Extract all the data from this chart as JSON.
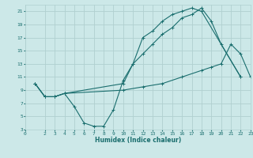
{
  "xlabel": "Humidex (Indice chaleur)",
  "background_color": "#cce8e8",
  "grid_color": "#b0d0d0",
  "line_color": "#1a6e6e",
  "xlim": [
    0,
    23
  ],
  "ylim": [
    3,
    22
  ],
  "xticks": [
    0,
    2,
    3,
    4,
    5,
    6,
    7,
    8,
    9,
    10,
    11,
    12,
    13,
    14,
    15,
    16,
    17,
    18,
    19,
    20,
    21,
    22,
    23
  ],
  "yticks": [
    3,
    5,
    7,
    9,
    11,
    13,
    15,
    17,
    19,
    21
  ],
  "line1_x": [
    1,
    2,
    3,
    4,
    5,
    6,
    7,
    8,
    9,
    10,
    11,
    12,
    13,
    14,
    15,
    16,
    17,
    18,
    22
  ],
  "line1_y": [
    10,
    8,
    8,
    8.5,
    6.5,
    4,
    3.5,
    3.5,
    6,
    10.5,
    13,
    17,
    18,
    19.5,
    20.5,
    21,
    21.5,
    21,
    11
  ],
  "line2_x": [
    1,
    2,
    3,
    4,
    10,
    11,
    12,
    13,
    14,
    15,
    16,
    17,
    18,
    19,
    20,
    22
  ],
  "line2_y": [
    10,
    8,
    8,
    8.5,
    10,
    13,
    14.5,
    16,
    17.5,
    18.5,
    20,
    20.5,
    21.5,
    19.5,
    16,
    11
  ],
  "line3_x": [
    1,
    2,
    3,
    4,
    10,
    12,
    14,
    16,
    18,
    19,
    20,
    21,
    22,
    23
  ],
  "line3_y": [
    10,
    8,
    8,
    8.5,
    9,
    9.5,
    10,
    11,
    12,
    12.5,
    13,
    16,
    14.5,
    11
  ]
}
